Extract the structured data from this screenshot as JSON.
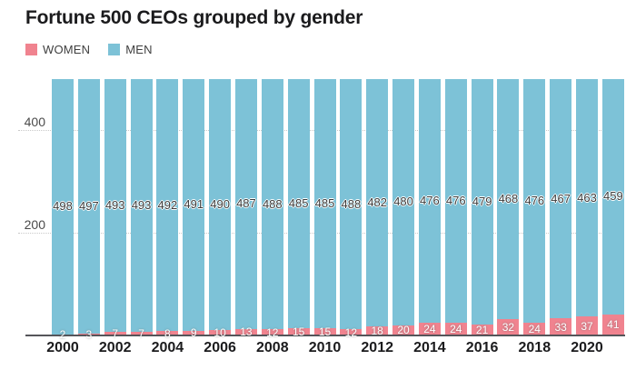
{
  "title": "Fortune 500 CEOs grouped by gender",
  "legend": {
    "items": [
      {
        "label": "WOMEN",
        "color": "#F0838F"
      },
      {
        "label": "MEN",
        "color": "#7DC2D7"
      }
    ]
  },
  "colors": {
    "women_bar": "#F0838F",
    "men_bar": "#7DC2D7",
    "axis_line": "#55555A",
    "gridline": "#C9C9C9",
    "men_value_text": "#3C3C3C",
    "women_value_text": "#FFFFFF",
    "title_text": "#1B1B1D"
  },
  "chart_data": {
    "type": "bar",
    "stacked": true,
    "title": "Fortune 500 CEOs grouped by gender",
    "categories": [
      2000,
      2001,
      2002,
      2003,
      2004,
      2005,
      2006,
      2007,
      2008,
      2009,
      2010,
      2011,
      2012,
      2013,
      2014,
      2015,
      2016,
      2017,
      2018,
      2019,
      2020,
      2021
    ],
    "series": [
      {
        "name": "WOMEN",
        "color": "#F0838F",
        "values": [
          2,
          3,
          7,
          7,
          8,
          9,
          10,
          13,
          12,
          15,
          15,
          12,
          18,
          20,
          24,
          24,
          21,
          32,
          24,
          33,
          37,
          41
        ]
      },
      {
        "name": "MEN",
        "color": "#7DC2D7",
        "values": [
          498,
          497,
          493,
          493,
          492,
          491,
          490,
          487,
          488,
          485,
          485,
          488,
          482,
          480,
          476,
          476,
          479,
          468,
          476,
          467,
          463,
          459
        ]
      }
    ],
    "xlabel": "",
    "ylabel": "",
    "ylim": [
      0,
      500
    ],
    "y_ticks": [
      200,
      400
    ],
    "x_tick_labels": [
      "2000",
      "2002",
      "2004",
      "2006",
      "2008",
      "2010",
      "2012",
      "2014",
      "2016",
      "2018",
      "2020"
    ],
    "x_tick_every": 2,
    "grid": true,
    "legend_position": "top-left",
    "value_labels": "shown-on-both-series"
  }
}
